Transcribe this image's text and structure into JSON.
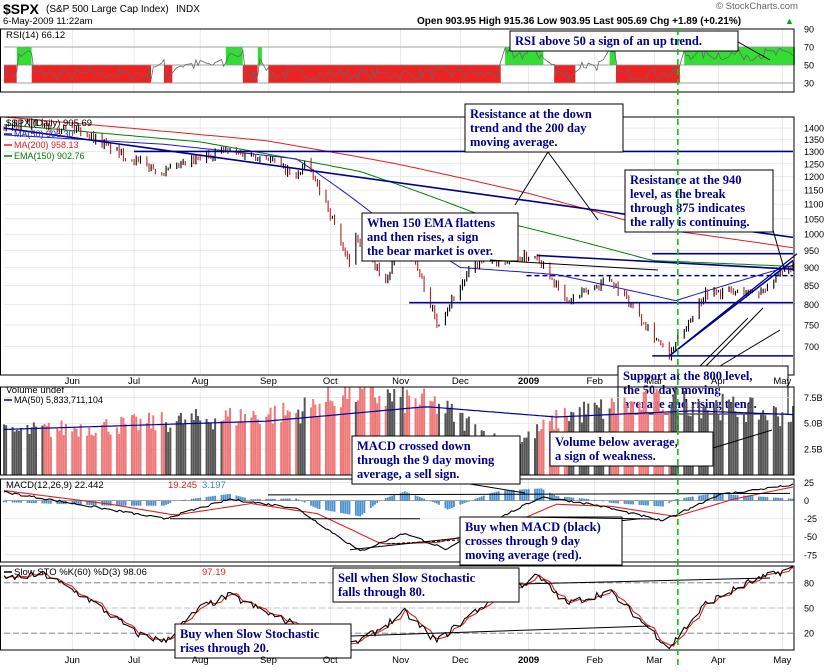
{
  "header": {
    "symbol": "$SPX",
    "name": "(S&P 500 Large Cap Index)",
    "exchange": "INDX",
    "datetime": "6-May-2009 11:22am",
    "quote": "Open 903.95  High 915.36  Low 903.95  Last 905.69  Chg +1.89 (+0.21%)",
    "quote_arrow": "▲",
    "watermark": "© StockCharts.com"
  },
  "colors": {
    "up": "#000000",
    "down": "#b22222",
    "ma50": "#1c1ccc",
    "ma200": "#e02020",
    "ema150": "#008000",
    "annotation": "#00008b",
    "rsi_above": "#33dd33",
    "rsi_below": "#ee2222",
    "marker": "#00cc00"
  },
  "chart_data": [
    {
      "type": "bar",
      "panel": "rsi",
      "legend": "RSI(14) 66.12",
      "ylim": [
        20,
        90
      ],
      "yticks": [
        90,
        70,
        50,
        30
      ],
      "reference_lines": [
        30,
        50,
        70
      ],
      "zones": [
        {
          "from": "2008-05-01",
          "to": "2008-05-06",
          "state": "below"
        },
        {
          "from": "2008-05-07",
          "to": "2008-05-13",
          "state": "above"
        },
        {
          "from": "2008-05-14",
          "to": "2008-07-08",
          "state": "below"
        },
        {
          "from": "2008-07-09",
          "to": "2008-07-14",
          "state": "neutral"
        },
        {
          "from": "2008-07-15",
          "to": "2008-07-18",
          "state": "below"
        },
        {
          "from": "2008-07-21",
          "to": "2008-08-12",
          "state": "neutral"
        },
        {
          "from": "2008-08-13",
          "to": "2008-08-20",
          "state": "above"
        },
        {
          "from": "2008-08-21",
          "to": "2008-08-27",
          "state": "below"
        },
        {
          "from": "2008-08-28",
          "to": "2008-08-29",
          "state": "above"
        },
        {
          "from": "2008-09-02",
          "to": "2008-12-19",
          "state": "below"
        },
        {
          "from": "2008-12-22",
          "to": "2009-01-08",
          "state": "above"
        },
        {
          "from": "2009-01-09",
          "to": "2009-01-13",
          "state": "neutral"
        },
        {
          "from": "2009-01-14",
          "to": "2009-01-23",
          "state": "below"
        },
        {
          "from": "2009-01-26",
          "to": "2009-02-06",
          "state": "neutral"
        },
        {
          "from": "2009-02-09",
          "to": "2009-02-11",
          "state": "above"
        },
        {
          "from": "2009-02-12",
          "to": "2009-03-13",
          "state": "below"
        },
        {
          "from": "2009-03-16",
          "to": "2009-05-06",
          "state": "above"
        }
      ],
      "annotation": "RSI above 50 a sign of an up trend."
    },
    {
      "type": "line",
      "panel": "price",
      "title": "$SPX (Daily) 905.69",
      "series": [
        {
          "name": "MA(50) 906.30",
          "key": "ma50"
        },
        {
          "name": "MA(200) 958.13",
          "key": "ma200"
        },
        {
          "name": "EMA(150) 902.76",
          "key": "ema150"
        }
      ],
      "price_anchors": [
        {
          "date": "2008-05-01",
          "close": 1400
        },
        {
          "date": "2008-05-19",
          "close": 1420
        },
        {
          "date": "2008-06-05",
          "close": 1395
        },
        {
          "date": "2008-06-27",
          "close": 1280
        },
        {
          "date": "2008-07-15",
          "close": 1215
        },
        {
          "date": "2008-08-11",
          "close": 1305
        },
        {
          "date": "2008-09-02",
          "close": 1275
        },
        {
          "date": "2008-09-15",
          "close": 1195
        },
        {
          "date": "2008-09-19",
          "close": 1255
        },
        {
          "date": "2008-09-29",
          "close": 1105
        },
        {
          "date": "2008-10-10",
          "close": 900
        },
        {
          "date": "2008-10-13",
          "close": 1000
        },
        {
          "date": "2008-10-27",
          "close": 850
        },
        {
          "date": "2008-11-04",
          "close": 1005
        },
        {
          "date": "2008-11-20",
          "close": 752
        },
        {
          "date": "2008-12-08",
          "close": 909
        },
        {
          "date": "2009-01-06",
          "close": 935
        },
        {
          "date": "2009-01-20",
          "close": 805
        },
        {
          "date": "2009-02-09",
          "close": 870
        },
        {
          "date": "2009-03-09",
          "close": 677
        },
        {
          "date": "2009-03-26",
          "close": 832
        },
        {
          "date": "2009-04-20",
          "close": 832
        },
        {
          "date": "2009-05-06",
          "close": 906
        }
      ],
      "ma50_anchors": [
        {
          "date": "2008-05-01",
          "value": 1370
        },
        {
          "date": "2008-07-15",
          "value": 1330
        },
        {
          "date": "2008-09-15",
          "value": 1270
        },
        {
          "date": "2008-10-24",
          "value": 1050
        },
        {
          "date": "2008-12-01",
          "value": 900
        },
        {
          "date": "2009-01-15",
          "value": 880
        },
        {
          "date": "2009-03-12",
          "value": 810
        },
        {
          "date": "2009-05-06",
          "value": 906
        }
      ],
      "ma200_anchors": [
        {
          "date": "2008-05-01",
          "value": 1450
        },
        {
          "date": "2008-09-01",
          "value": 1345
        },
        {
          "date": "2008-11-01",
          "value": 1250
        },
        {
          "date": "2009-01-01",
          "value": 1140
        },
        {
          "date": "2009-03-01",
          "value": 1020
        },
        {
          "date": "2009-05-06",
          "value": 958
        }
      ],
      "ema150_anchors": [
        {
          "date": "2008-05-01",
          "value": 1415
        },
        {
          "date": "2008-08-01",
          "value": 1340
        },
        {
          "date": "2008-10-15",
          "value": 1220
        },
        {
          "date": "2008-12-15",
          "value": 1050
        },
        {
          "date": "2009-03-01",
          "value": 920
        },
        {
          "date": "2009-05-06",
          "value": 903
        }
      ],
      "ylim": [
        640,
        1450
      ],
      "yticks": [
        1400,
        1350,
        1300,
        1250,
        1200,
        1150,
        1100,
        1050,
        1000,
        950,
        900,
        850,
        800,
        750,
        700
      ],
      "scale": "log",
      "trendlines": [
        {
          "name": "down-trend",
          "from": {
            "date": "2008-05-01",
            "value": 1400
          },
          "to": {
            "date": "2009-05-06",
            "value": 990
          }
        },
        {
          "name": "horizontal-1300",
          "from": {
            "date": "2008-07-01",
            "value": 1300
          },
          "to": {
            "date": "2009-05-06",
            "value": 1300
          }
        },
        {
          "name": "resistance-940",
          "from": {
            "date": "2009-03-01",
            "value": 940
          },
          "to": {
            "date": "2009-05-06",
            "value": 940
          }
        },
        {
          "name": "dashed-875",
          "from": {
            "date": "2009-01-01",
            "value": 877
          },
          "to": {
            "date": "2009-05-06",
            "value": 877
          },
          "dashed": true
        },
        {
          "name": "support-800",
          "from": {
            "date": "2008-11-07",
            "value": 805
          },
          "to": {
            "date": "2009-05-06",
            "value": 805
          }
        },
        {
          "name": "rising-trend",
          "from": {
            "date": "2009-03-09",
            "value": 680
          },
          "to": {
            "date": "2009-05-06",
            "value": 920
          }
        },
        {
          "name": "low-680",
          "from": {
            "date": "2009-03-01",
            "value": 680
          },
          "to": {
            "date": "2009-05-06",
            "value": 680
          }
        },
        {
          "name": "mid-fan",
          "from": {
            "date": "2009-01-06",
            "value": 935
          },
          "to": {
            "date": "2009-05-06",
            "value": 895
          }
        }
      ],
      "annotations": [
        {
          "name": "annotation-resistance-downtrend",
          "lines": [
            "Resistance at the down",
            "trend and the 200 day",
            "moving average."
          ]
        },
        {
          "name": "annotation-resistance-940",
          "lines": [
            "Resistance at the 940",
            "level, as the break",
            "through 875 indicates",
            "the rally is continuing."
          ]
        },
        {
          "name": "annotation-ema-flattens",
          "lines": [
            "When 150 EMA flattens",
            "and then rises, a sign",
            "the bear market is over."
          ]
        },
        {
          "name": "annotation-support-800",
          "lines": [
            "Support at the 800 level,",
            "the 50 day moving",
            "average and rising trend."
          ]
        }
      ]
    },
    {
      "type": "bar",
      "panel": "volume",
      "title": "Volume undef",
      "series": [
        {
          "name": "MA(50) 5,833,711,104",
          "key": "vol_ma"
        }
      ],
      "ylim": [
        0,
        8500000000
      ],
      "yticks": [
        7500000000,
        5000000000,
        2500000000
      ],
      "ytick_labels": [
        "7.5B",
        "5.0B",
        "2.5B"
      ],
      "volume_anchors": [
        {
          "date": "2008-05-01",
          "value": 4200000000
        },
        {
          "date": "2008-07-15",
          "value": 5200000000
        },
        {
          "date": "2008-09-15",
          "value": 6200000000
        },
        {
          "date": "2008-10-10",
          "value": 8300000000
        },
        {
          "date": "2008-11-20",
          "value": 6900000000
        },
        {
          "date": "2008-12-24",
          "value": 2700000000
        },
        {
          "date": "2009-01-20",
          "value": 6000000000
        },
        {
          "date": "2009-03-10",
          "value": 7400000000
        },
        {
          "date": "2009-05-06",
          "value": 5800000000
        }
      ],
      "annotation": [
        "Volume below average,",
        "a sign of weakness."
      ]
    },
    {
      "type": "line",
      "panel": "macd",
      "title": "MACD(12,26,9)",
      "series": [
        {
          "name": "MACD(12,26,9) 22.442",
          "key": "macd",
          "color": "#000000"
        },
        {
          "name": "19.245",
          "key": "signal",
          "color": "#e02020"
        },
        {
          "name": "3.197",
          "key": "hist",
          "color": "#3388cc"
        }
      ],
      "ylim": [
        -85,
        30
      ],
      "yticks": [
        25,
        0,
        -25,
        -50,
        -75
      ],
      "macd_anchors": [
        {
          "date": "2008-05-01",
          "value": 12
        },
        {
          "date": "2008-06-15",
          "value": -10
        },
        {
          "date": "2008-07-15",
          "value": -25
        },
        {
          "date": "2008-08-15",
          "value": 2
        },
        {
          "date": "2008-09-15",
          "value": -10
        },
        {
          "date": "2008-10-15",
          "value": -70
        },
        {
          "date": "2008-11-05",
          "value": -45
        },
        {
          "date": "2008-11-25",
          "value": -68
        },
        {
          "date": "2008-12-15",
          "value": -30
        },
        {
          "date": "2009-01-08",
          "value": 5
        },
        {
          "date": "2009-02-01",
          "value": -5
        },
        {
          "date": "2009-03-06",
          "value": -28
        },
        {
          "date": "2009-04-01",
          "value": 8
        },
        {
          "date": "2009-05-06",
          "value": 22
        }
      ],
      "signal_anchors": [
        {
          "date": "2008-05-01",
          "value": 14
        },
        {
          "date": "2008-06-20",
          "value": -5
        },
        {
          "date": "2008-07-20",
          "value": -20
        },
        {
          "date": "2008-08-25",
          "value": -4
        },
        {
          "date": "2008-09-25",
          "value": -18
        },
        {
          "date": "2008-10-25",
          "value": -60
        },
        {
          "date": "2008-11-20",
          "value": -58
        },
        {
          "date": "2008-12-20",
          "value": -38
        },
        {
          "date": "2009-01-15",
          "value": -5
        },
        {
          "date": "2009-02-10",
          "value": -8
        },
        {
          "date": "2009-03-12",
          "value": -22
        },
        {
          "date": "2009-04-08",
          "value": 2
        },
        {
          "date": "2009-05-06",
          "value": 19
        }
      ],
      "annotations": [
        {
          "name": "annotation-macd-crossed-down",
          "lines": [
            "MACD crossed down",
            "through the 9 day moving",
            "average, a sell sign."
          ]
        },
        {
          "name": "annotation-macd-buy",
          "lines": [
            "Buy when MACD (black)",
            "crosses through 9 day",
            "moving average (red)."
          ]
        }
      ]
    },
    {
      "type": "line",
      "panel": "stochastic",
      "title": "Slow STO %K(60) %D(3)",
      "series": [
        {
          "name": "Slow STO %K(60) %D(3) 98.06",
          "key": "k",
          "color": "#000000"
        },
        {
          "name": "97.19",
          "key": "d",
          "color": "#e02020"
        }
      ],
      "ylim": [
        0,
        100
      ],
      "yticks": [
        80,
        50,
        20
      ],
      "sto_anchors": [
        {
          "date": "2008-05-01",
          "value": 85
        },
        {
          "date": "2008-05-20",
          "value": 90
        },
        {
          "date": "2008-06-10",
          "value": 60
        },
        {
          "date": "2008-07-02",
          "value": 20
        },
        {
          "date": "2008-07-15",
          "value": 10
        },
        {
          "date": "2008-08-01",
          "value": 50
        },
        {
          "date": "2008-08-15",
          "value": 65
        },
        {
          "date": "2008-09-05",
          "value": 40
        },
        {
          "date": "2008-09-25",
          "value": 20
        },
        {
          "date": "2008-10-10",
          "value": 5
        },
        {
          "date": "2008-10-20",
          "value": 18
        },
        {
          "date": "2008-11-05",
          "value": 45
        },
        {
          "date": "2008-11-20",
          "value": 10
        },
        {
          "date": "2008-12-10",
          "value": 50
        },
        {
          "date": "2009-01-06",
          "value": 88
        },
        {
          "date": "2009-01-20",
          "value": 55
        },
        {
          "date": "2009-02-09",
          "value": 70
        },
        {
          "date": "2009-03-09",
          "value": 3
        },
        {
          "date": "2009-03-26",
          "value": 55
        },
        {
          "date": "2009-04-15",
          "value": 80
        },
        {
          "date": "2009-05-06",
          "value": 98
        }
      ],
      "annotations": [
        {
          "name": "annotation-sto-sell",
          "lines": [
            "Sell when Slow Stochastic",
            "falls through 80."
          ]
        },
        {
          "name": "annotation-sto-buy",
          "lines": [
            "Buy when Slow Stochastic",
            "rises through 20."
          ]
        }
      ]
    }
  ],
  "x_axis": {
    "start": "2008-05-01",
    "end": "2009-05-06",
    "labels": [
      {
        "date": "2008-06-02",
        "text": "Jun"
      },
      {
        "date": "2008-07-01",
        "text": "Jul"
      },
      {
        "date": "2008-08-01",
        "text": "Aug"
      },
      {
        "date": "2008-09-02",
        "text": "Sep"
      },
      {
        "date": "2008-10-01",
        "text": "Oct"
      },
      {
        "date": "2008-11-03",
        "text": "Nov"
      },
      {
        "date": "2008-12-01",
        "text": "Dec"
      },
      {
        "date": "2009-01-02",
        "text": "2009"
      },
      {
        "date": "2009-02-02",
        "text": "Feb"
      },
      {
        "date": "2009-03-02",
        "text": "Mar"
      },
      {
        "date": "2009-04-01",
        "text": "Apr"
      },
      {
        "date": "2009-05-01",
        "text": "May"
      }
    ],
    "marker_date": "2009-03-13"
  }
}
